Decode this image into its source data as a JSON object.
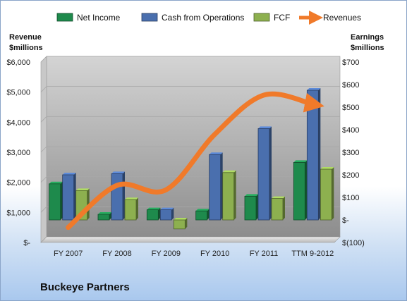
{
  "company": "Buckeye Partners",
  "chart_data": {
    "type": "bar",
    "categories": [
      "FY 2007",
      "FY 2008",
      "FY 2009",
      "FY 2010",
      "FY 2011",
      "TTM 9-2012"
    ],
    "left_axis": {
      "label_line1": "Revenue",
      "label_line2": "$millions",
      "ylim": [
        0,
        6000
      ],
      "ticks": [
        0,
        1000,
        2000,
        3000,
        4000,
        5000,
        6000
      ],
      "tick_labels": [
        "$-",
        "$1,000",
        "$2,000",
        "$3,000",
        "$4,000",
        "$5,000",
        "$6,000"
      ]
    },
    "right_axis": {
      "label_line1": "Earnings",
      "label_line2": "$millions",
      "ylim": [
        -100,
        700
      ],
      "ticks": [
        -100,
        0,
        100,
        200,
        300,
        400,
        500,
        600,
        700
      ],
      "tick_labels": [
        "$(100)",
        "$-",
        "$100",
        "$200",
        "$300",
        "$400",
        "$500",
        "$600",
        "$700"
      ]
    },
    "series": [
      {
        "name": "Net Income",
        "type": "bar",
        "axis": "right",
        "color": "#1e8a4c",
        "values": [
          160,
          25,
          45,
          40,
          105,
          255
        ]
      },
      {
        "name": "Cash from Operations",
        "type": "bar",
        "axis": "right",
        "color": "#4a6fae",
        "values": [
          200,
          205,
          45,
          290,
          405,
          575
        ]
      },
      {
        "name": "FCF",
        "type": "bar",
        "axis": "right",
        "color": "#8db04f",
        "values": [
          130,
          90,
          -40,
          210,
          95,
          225
        ]
      },
      {
        "name": "Revenues",
        "type": "line",
        "axis": "left",
        "color": "#f07a2a",
        "values": [
          500,
          1900,
          1750,
          3600,
          4900,
          4600
        ]
      }
    ],
    "grid": true,
    "legend": "top"
  }
}
